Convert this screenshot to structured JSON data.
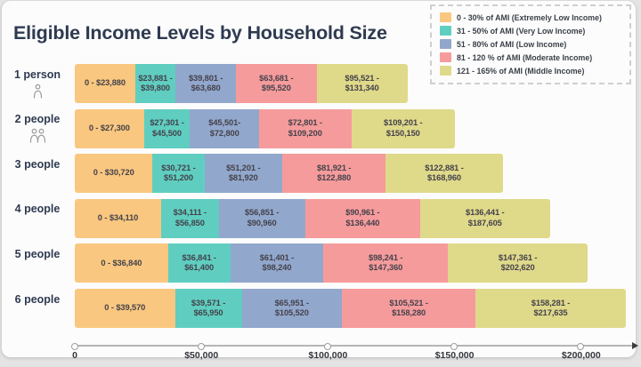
{
  "title": "Eligible Income Levels by Household Size",
  "chart_data": {
    "type": "bar",
    "variant": "horizontal-stacked-income-ranges",
    "title": "Eligible Income Levels by Household Size",
    "legend_position": "top-right",
    "grid": false,
    "bands": [
      {
        "label": "0 - 30% of AMI (Extremely Low Income)",
        "color": "#F9C77F"
      },
      {
        "label": "31 - 50% of AMI (Very Low Income)",
        "color": "#5FCEC0"
      },
      {
        "label": "51 - 80% of AMI (Low Income)",
        "color": "#92A7CC"
      },
      {
        "label": "81 - 120 % of AMI (Moderate Income)",
        "color": "#F69B9C"
      },
      {
        "label": "121 - 165% of AMI (Middle Income)",
        "color": "#DFD98A"
      }
    ],
    "x_axis": {
      "min": 0,
      "max": 220000,
      "ticks": [
        {
          "value": 0,
          "label": "0"
        },
        {
          "value": 50000,
          "label": "$50,000"
        },
        {
          "value": 100000,
          "label": "$100,000"
        },
        {
          "value": 150000,
          "label": "$150,000"
        },
        {
          "value": 200000,
          "label": "$200,000"
        }
      ]
    },
    "rows": [
      {
        "label": "1 person",
        "persons": 1,
        "segments": [
          {
            "band": 0,
            "min": 0,
            "max": 23880,
            "text": "0 - $23,880"
          },
          {
            "band": 1,
            "min": 23881,
            "max": 39800,
            "text": "$23,881 -\n$39,800"
          },
          {
            "band": 2,
            "min": 39801,
            "max": 63680,
            "text": "$39,801 -\n$63,680"
          },
          {
            "band": 3,
            "min": 63681,
            "max": 95520,
            "text": "$63,681 -\n$95,520"
          },
          {
            "band": 4,
            "min": 95521,
            "max": 131340,
            "text": "$95,521 -\n$131,340"
          }
        ]
      },
      {
        "label": "2 people",
        "persons": 2,
        "segments": [
          {
            "band": 0,
            "min": 0,
            "max": 27300,
            "text": "0 - $27,300"
          },
          {
            "band": 1,
            "min": 27301,
            "max": 45500,
            "text": "$27,301 -\n$45,500"
          },
          {
            "band": 2,
            "min": 45501,
            "max": 72800,
            "text": "$45,501-\n$72,800"
          },
          {
            "band": 3,
            "min": 72801,
            "max": 109200,
            "text": "$72,801 -\n$109,200"
          },
          {
            "band": 4,
            "min": 109201,
            "max": 150150,
            "text": "$109,201 -\n$150,150"
          }
        ]
      },
      {
        "label": "3 people",
        "persons": 3,
        "segments": [
          {
            "band": 0,
            "min": 0,
            "max": 30720,
            "text": "0 - $30,720"
          },
          {
            "band": 1,
            "min": 30721,
            "max": 51200,
            "text": "$30,721 -\n$51,200"
          },
          {
            "band": 2,
            "min": 51201,
            "max": 81920,
            "text": "$51,201 -\n$81,920"
          },
          {
            "band": 3,
            "min": 81921,
            "max": 122880,
            "text": "$81,921 -\n$122,880"
          },
          {
            "band": 4,
            "min": 122881,
            "max": 168960,
            "text": "$122,881 -\n$168,960"
          }
        ]
      },
      {
        "label": "4 people",
        "persons": 4,
        "segments": [
          {
            "band": 0,
            "min": 0,
            "max": 34110,
            "text": "0 - $34,110"
          },
          {
            "band": 1,
            "min": 34111,
            "max": 56850,
            "text": "$34,111 -\n$56,850"
          },
          {
            "band": 2,
            "min": 56851,
            "max": 90960,
            "text": "$56,851 -\n$90,960"
          },
          {
            "band": 3,
            "min": 90961,
            "max": 136440,
            "text": "$90,961 -\n$136,440"
          },
          {
            "band": 4,
            "min": 136441,
            "max": 187605,
            "text": "$136,441 -\n$187,605"
          }
        ]
      },
      {
        "label": "5 people",
        "persons": 5,
        "segments": [
          {
            "band": 0,
            "min": 0,
            "max": 36840,
            "text": "0 - $36,840"
          },
          {
            "band": 1,
            "min": 36841,
            "max": 61400,
            "text": "$36,841 -\n$61,400"
          },
          {
            "band": 2,
            "min": 61401,
            "max": 98240,
            "text": "$61,401 -\n$98,240"
          },
          {
            "band": 3,
            "min": 98241,
            "max": 147360,
            "text": "$98,241 -\n$147,360"
          },
          {
            "band": 4,
            "min": 147361,
            "max": 202620,
            "text": "$147,361 -\n$202,620"
          }
        ]
      },
      {
        "label": "6 people",
        "persons": 6,
        "segments": [
          {
            "band": 0,
            "min": 0,
            "max": 39570,
            "text": "0 - $39,570"
          },
          {
            "band": 1,
            "min": 39571,
            "max": 65950,
            "text": "$39,571 -\n$65,950"
          },
          {
            "band": 2,
            "min": 65951,
            "max": 105520,
            "text": "$65,951 -\n$105,520"
          },
          {
            "band": 3,
            "min": 105521,
            "max": 158280,
            "text": "$105,521 -\n$158,280"
          },
          {
            "band": 4,
            "min": 158281,
            "max": 217635,
            "text": "$158,281 -\n$217,635"
          }
        ]
      }
    ]
  }
}
